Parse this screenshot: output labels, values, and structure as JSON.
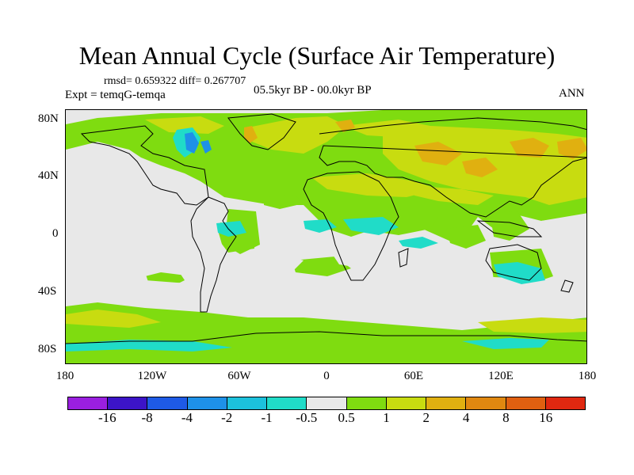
{
  "title": "Mean Annual Cycle (Surface Air Temperature)",
  "stats": "rmsd= 0.659322  diff= 0.267707",
  "experiment": "Expt = temqG-temqa",
  "period": "05.5kyr BP - 00.0kyr BP",
  "season": "ANN",
  "axes": {
    "lat_ticks": [
      "80N",
      "40N",
      "0",
      "40S",
      "80S"
    ],
    "lon_ticks": [
      "180",
      "120W",
      "60W",
      "0",
      "60E",
      "120E",
      "180"
    ]
  },
  "colorbar": {
    "colors": [
      "#9a1fe0",
      "#3c14c8",
      "#1e5ae6",
      "#1e91e8",
      "#1cc1dc",
      "#20dcc8",
      "#e8e8e8",
      "#7fdc10",
      "#c8dc10",
      "#e0b010",
      "#e08810",
      "#e06010",
      "#e02810"
    ],
    "labels": [
      "-16",
      "-8",
      "-4",
      "-2",
      "-1",
      "-0.5",
      "0.5",
      "1",
      "2",
      "4",
      "8",
      "16"
    ]
  }
}
